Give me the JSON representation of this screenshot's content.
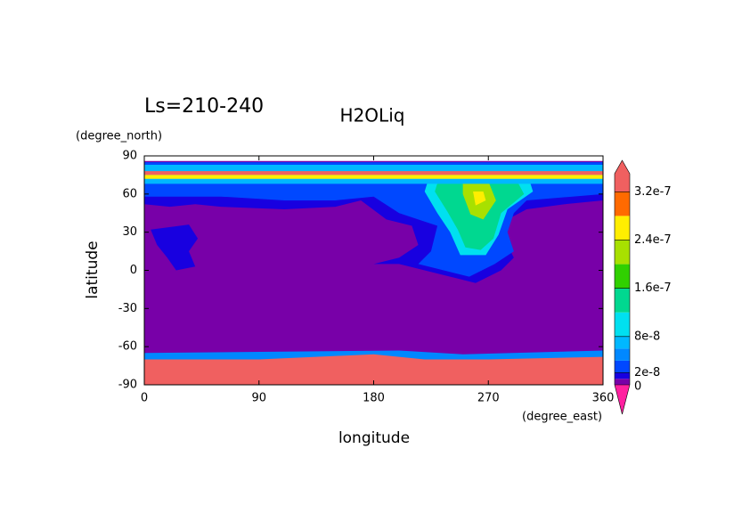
{
  "chart_data": {
    "type": "contour",
    "title": "H2OLiq",
    "subtitle": "Ls=210-240",
    "x_label": "longitude",
    "y_label": "latitude",
    "x_units": "(degree_east)",
    "y_units": "(degree_north)",
    "xlim": [
      0,
      360
    ],
    "ylim": [
      -90,
      90
    ],
    "xticks": [
      0,
      90,
      180,
      270,
      360
    ],
    "yticks": [
      -90,
      -60,
      -30,
      0,
      30,
      60,
      90
    ],
    "clim": [
      0,
      3.5e-07
    ],
    "cticks": [
      0,
      2e-08,
      8e-08,
      1.6e-07,
      2.4e-07,
      3.2e-07
    ],
    "levels": [
      0,
      1e-08,
      2e-08,
      4e-08,
      6e-08,
      8e-08,
      1.2e-07,
      1.6e-07,
      2e-07,
      2.4e-07,
      2.8e-07,
      3.2e-07,
      3.5e-07
    ],
    "colors": [
      "#7800a8",
      "#1800e0",
      "#0048ff",
      "#0088ff",
      "#00b8ff",
      "#00e0f0",
      "#00d890",
      "#30d000",
      "#a8e000",
      "#ffee00",
      "#ff6a00",
      "#f06060"
    ],
    "under_color": "#ff20a0",
    "over_color": "#f06060",
    "regions": [
      {
        "value": 5e-09,
        "points": [
          [
            0,
            86
          ],
          [
            360,
            86
          ],
          [
            360,
            -90
          ],
          [
            0,
            -90
          ]
        ]
      },
      {
        "value": 1.5e-08,
        "points": [
          [
            0,
            85
          ],
          [
            360,
            85
          ],
          [
            360,
            55
          ],
          [
            330,
            52
          ],
          [
            300,
            48
          ],
          [
            285,
            40
          ],
          [
            280,
            30
          ],
          [
            290,
            10
          ],
          [
            280,
            0
          ],
          [
            260,
            -10
          ],
          [
            240,
            -5
          ],
          [
            220,
            0
          ],
          [
            200,
            5
          ],
          [
            180,
            5
          ],
          [
            200,
            10
          ],
          [
            215,
            20
          ],
          [
            210,
            35
          ],
          [
            190,
            40
          ],
          [
            170,
            55
          ],
          [
            150,
            50
          ],
          [
            110,
            48
          ],
          [
            60,
            50
          ],
          [
            40,
            52
          ],
          [
            20,
            50
          ],
          [
            0,
            52
          ]
        ]
      },
      {
        "value": 3e-08,
        "points": [
          [
            0,
            85
          ],
          [
            360,
            85
          ],
          [
            360,
            60
          ],
          [
            300,
            55
          ],
          [
            290,
            45
          ],
          [
            285,
            30
          ],
          [
            290,
            15
          ],
          [
            275,
            5
          ],
          [
            255,
            -5
          ],
          [
            235,
            0
          ],
          [
            215,
            5
          ],
          [
            225,
            15
          ],
          [
            230,
            35
          ],
          [
            200,
            45
          ],
          [
            180,
            58
          ],
          [
            150,
            55
          ],
          [
            110,
            55
          ],
          [
            60,
            58
          ],
          [
            0,
            58
          ]
        ]
      },
      {
        "value": 1e-07,
        "points": [
          [
            225,
            78
          ],
          [
            300,
            78
          ],
          [
            305,
            62
          ],
          [
            285,
            48
          ],
          [
            278,
            28
          ],
          [
            268,
            12
          ],
          [
            248,
            12
          ],
          [
            240,
            30
          ],
          [
            230,
            45
          ],
          [
            220,
            62
          ]
        ]
      },
      {
        "value": 1.4e-07,
        "points": [
          [
            232,
            75
          ],
          [
            290,
            75
          ],
          [
            298,
            60
          ],
          [
            280,
            45
          ],
          [
            274,
            25
          ],
          [
            264,
            16
          ],
          [
            252,
            18
          ],
          [
            246,
            32
          ],
          [
            238,
            46
          ],
          [
            228,
            62
          ]
        ]
      },
      {
        "value": 2.1e-07,
        "points": [
          [
            250,
            70
          ],
          [
            270,
            70
          ],
          [
            276,
            55
          ],
          [
            266,
            40
          ],
          [
            256,
            44
          ],
          [
            250,
            60
          ]
        ]
      },
      {
        "value": 2.5e-07,
        "points": [
          [
            258,
            62
          ],
          [
            266,
            62
          ],
          [
            268,
            55
          ],
          [
            260,
            51
          ]
        ]
      },
      {
        "value": 1.5e-08,
        "points": [
          [
            5,
            32
          ],
          [
            35,
            36
          ],
          [
            42,
            25
          ],
          [
            35,
            15
          ],
          [
            40,
            3
          ],
          [
            25,
            0
          ],
          [
            18,
            10
          ],
          [
            10,
            20
          ]
        ]
      },
      {
        "value": 7e-08,
        "points": [
          [
            0,
            83
          ],
          [
            360,
            83
          ],
          [
            360,
            68
          ],
          [
            0,
            68
          ]
        ]
      },
      {
        "value": 3.3e-07,
        "points": [
          [
            0,
            78
          ],
          [
            360,
            78
          ],
          [
            360,
            75
          ],
          [
            0,
            75
          ]
        ]
      },
      {
        "value": 2.5e-07,
        "points": [
          [
            0,
            75
          ],
          [
            360,
            75
          ],
          [
            360,
            72
          ],
          [
            0,
            72
          ]
        ]
      },
      {
        "value": 5e-08,
        "points": [
          [
            0,
            -65
          ],
          [
            200,
            -63
          ],
          [
            250,
            -66
          ],
          [
            360,
            -63
          ],
          [
            360,
            -70
          ],
          [
            0,
            -70
          ]
        ]
      },
      {
        "value": 3.3e-07,
        "points": [
          [
            0,
            -70
          ],
          [
            90,
            -70
          ],
          [
            180,
            -66
          ],
          [
            220,
            -70
          ],
          [
            270,
            -70
          ],
          [
            360,
            -68
          ],
          [
            360,
            -90
          ],
          [
            0,
            -90
          ]
        ]
      }
    ]
  }
}
